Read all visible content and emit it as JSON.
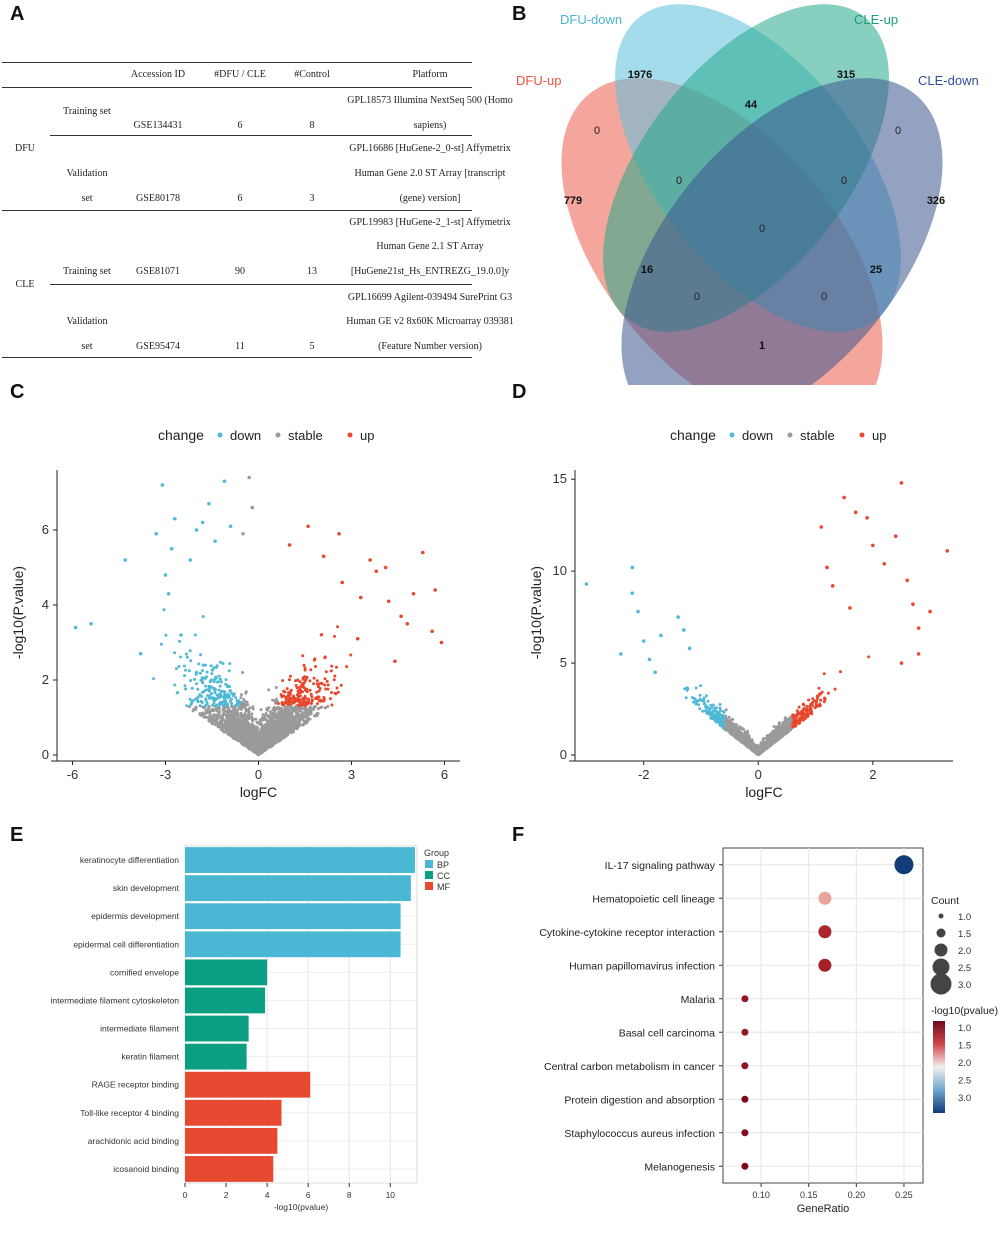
{
  "panels": {
    "a": "A",
    "b": "B",
    "c": "C",
    "d": "D",
    "e": "E",
    "f": "F"
  },
  "table": {
    "headers": [
      "Accession ID",
      "#DFU / CLE",
      "#Control",
      "Platform"
    ],
    "groups": [
      "DFU",
      "CLE"
    ],
    "rows": [
      {
        "set1": "Training set",
        "set2": "",
        "accession": "GSE134431",
        "cases": "6",
        "control": "8",
        "platform": [
          "GPL18573 Illumina NextSeq 500 (Homo",
          "sapiens)"
        ]
      },
      {
        "set1": "Validation",
        "set2": "set",
        "accession": "GSE80178",
        "cases": "6",
        "control": "3",
        "platform": [
          "GPL16686 [HuGene-2_0-st] Affymetrix",
          "Human Gene 2.0 ST Array [transcript",
          "(gene) version]"
        ]
      },
      {
        "set1": "Training set",
        "set2": "",
        "accession": "GSE81071",
        "cases": "90",
        "control": "13",
        "platform": [
          "GPL19983 [HuGene-2_1-st] Affymetrix",
          "Human Gene 2.1 ST Array",
          "[HuGene21st_Hs_ENTREZG_19.0.0]y"
        ]
      },
      {
        "set1": "Validation",
        "set2": "set",
        "accession": "GSE95474",
        "cases": "11",
        "control": "5",
        "platform": [
          "GPL16699 Agilent-039494 SurePrint G3",
          "Human GE v2 8x60K Microarray 039381",
          "(Feature Number version)"
        ]
      }
    ]
  },
  "chart_data": [
    {
      "type": "venn",
      "sets": [
        {
          "name": "DFU-up",
          "color": "#ee6a5a"
        },
        {
          "name": "DFU-down",
          "color": "#5bc0dc"
        },
        {
          "name": "CLE-up",
          "color": "#25a98b"
        },
        {
          "name": "CLE-down",
          "color": "#3d5590"
        }
      ],
      "regions": [
        {
          "sets": "DFU-down only",
          "value": "1976"
        },
        {
          "sets": "CLE-up only",
          "value": "315"
        },
        {
          "sets": "DFU-down & CLE-up",
          "value": "44"
        },
        {
          "sets": "DFU-up only",
          "value": "779"
        },
        {
          "sets": "CLE-down only",
          "value": "326"
        },
        {
          "sets": "DFU-up & DFU-down",
          "value": "0"
        },
        {
          "sets": "CLE-up & CLE-down",
          "value": "0"
        },
        {
          "sets": "DFU-up & DFU-down & CLE-up",
          "value": "0"
        },
        {
          "sets": "DFU-down & CLE-up & CLE-down",
          "value": "0"
        },
        {
          "sets": "all four",
          "value": "0"
        },
        {
          "sets": "DFU-up & CLE-up",
          "value": "16"
        },
        {
          "sets": "DFU-down & CLE-down",
          "value": "25"
        },
        {
          "sets": "DFU-up & CLE-up & CLE-down",
          "value": "0"
        },
        {
          "sets": "DFU-up & DFU-down & CLE-down",
          "value": "0"
        },
        {
          "sets": "DFU-up & CLE-down",
          "value": "1"
        }
      ]
    },
    {
      "type": "scatter",
      "title": "",
      "legend_title": "change",
      "legend": [
        {
          "label": "down",
          "color": "#4fb9d6"
        },
        {
          "label": "stable",
          "color": "#9a9a9a"
        },
        {
          "label": "up",
          "color": "#e8472d"
        }
      ],
      "xlabel": "logFC",
      "ylabel": "-log10(P.value)",
      "xlim": [
        -6.5,
        6.5
      ],
      "ylim": [
        0,
        7.6
      ],
      "xticks": [
        -6,
        -3,
        0,
        3,
        6
      ],
      "yticks": [
        0,
        2,
        4,
        6
      ],
      "outliers": {
        "down": [
          [
            -5.9,
            3.4
          ],
          [
            -5.4,
            3.5
          ],
          [
            -4.3,
            5.2
          ],
          [
            -3.8,
            2.7
          ],
          [
            -3.3,
            5.9
          ],
          [
            -3.1,
            7.2
          ],
          [
            -2.9,
            4.3
          ],
          [
            -2.8,
            5.5
          ],
          [
            -2.7,
            6.3
          ],
          [
            -2.2,
            5.2
          ],
          [
            -2.0,
            6.0
          ],
          [
            -1.6,
            6.7
          ],
          [
            -1.4,
            5.7
          ],
          [
            -1.1,
            7.3
          ],
          [
            -0.9,
            6.1
          ],
          [
            -2.5,
            3.2
          ],
          [
            -3.0,
            4.8
          ],
          [
            -2.0,
            2.2
          ],
          [
            -1.8,
            6.2
          ]
        ],
        "stable": [
          [
            -0.3,
            7.4
          ],
          [
            -0.2,
            6.6
          ],
          [
            -0.5,
            5.9
          ]
        ],
        "up": [
          [
            1.0,
            5.6
          ],
          [
            1.6,
            6.1
          ],
          [
            2.1,
            5.3
          ],
          [
            2.6,
            5.9
          ],
          [
            3.3,
            4.2
          ],
          [
            3.6,
            5.2
          ],
          [
            3.8,
            4.9
          ],
          [
            4.1,
            5.0
          ],
          [
            4.2,
            4.1
          ],
          [
            4.6,
            3.7
          ],
          [
            4.8,
            3.5
          ],
          [
            5.0,
            4.3
          ],
          [
            5.3,
            5.4
          ],
          [
            5.6,
            3.3
          ],
          [
            5.7,
            4.4
          ],
          [
            5.9,
            3.0
          ],
          [
            4.4,
            2.5
          ],
          [
            3.2,
            3.1
          ],
          [
            2.7,
            4.6
          ]
        ]
      }
    },
    {
      "type": "scatter",
      "title": "",
      "legend_title": "change",
      "legend": [
        {
          "label": "down",
          "color": "#4fb9d6"
        },
        {
          "label": "stable",
          "color": "#9a9a9a"
        },
        {
          "label": "up",
          "color": "#e8472d"
        }
      ],
      "xlabel": "logFC",
      "ylabel": "-log10(P.value)",
      "xlim": [
        -3.2,
        3.4
      ],
      "ylim": [
        0,
        15.5
      ],
      "xticks": [
        -2,
        0,
        2
      ],
      "yticks": [
        0,
        5,
        10,
        15
      ],
      "outliers": {
        "down": [
          [
            -3.0,
            9.3
          ],
          [
            -2.2,
            10.2
          ],
          [
            -2.2,
            8.8
          ],
          [
            -2.1,
            7.8
          ],
          [
            -2.0,
            6.2
          ],
          [
            -1.9,
            5.2
          ],
          [
            -1.7,
            6.5
          ],
          [
            -1.4,
            7.5
          ],
          [
            -1.3,
            6.8
          ],
          [
            -2.4,
            5.5
          ],
          [
            -1.8,
            4.5
          ],
          [
            -1.2,
            5.8
          ]
        ],
        "up": [
          [
            1.1,
            12.4
          ],
          [
            1.2,
            10.2
          ],
          [
            1.5,
            14.0
          ],
          [
            1.9,
            12.9
          ],
          [
            2.0,
            11.4
          ],
          [
            2.2,
            10.4
          ],
          [
            2.4,
            11.9
          ],
          [
            2.5,
            14.8
          ],
          [
            2.6,
            9.5
          ],
          [
            2.7,
            8.2
          ],
          [
            2.8,
            6.9
          ],
          [
            3.3,
            11.1
          ],
          [
            3.0,
            7.8
          ],
          [
            2.5,
            5.0
          ],
          [
            2.8,
            5.5
          ],
          [
            1.7,
            13.2
          ],
          [
            1.3,
            9.2
          ],
          [
            1.6,
            8.0
          ]
        ]
      }
    },
    {
      "type": "bar",
      "orientation": "horizontal",
      "xlabel": "-log10(pvalue)",
      "xlim": [
        0,
        11.3
      ],
      "xticks": [
        0,
        2,
        4,
        6,
        8,
        10
      ],
      "legend_title": "Group",
      "groups": [
        {
          "name": "BP",
          "color": "#4ab7d5"
        },
        {
          "name": "CC",
          "color": "#0b9e83"
        },
        {
          "name": "MF",
          "color": "#e6492f"
        }
      ],
      "categories": [
        "keratinocyte differentiation",
        "skin development",
        "epidermis development",
        "epidermal cell differentiation",
        "cornified envelope",
        "intermediate filament cytoskeleton",
        "intermediate filament",
        "keratin filament",
        "RAGE receptor binding",
        "Toll-like receptor 4 binding",
        "arachidonic acid binding",
        "icosanoid binding"
      ],
      "category_groups": [
        "BP",
        "BP",
        "BP",
        "BP",
        "CC",
        "CC",
        "CC",
        "CC",
        "MF",
        "MF",
        "MF",
        "MF"
      ],
      "values": [
        11.2,
        11.0,
        10.5,
        10.5,
        4.0,
        3.9,
        3.1,
        3.0,
        6.1,
        4.7,
        4.5,
        4.3
      ]
    },
    {
      "type": "scatter",
      "subtype": "dotplot",
      "xlabel": "GeneRatio",
      "xlim": [
        0.06,
        0.27
      ],
      "xticks": [
        0.1,
        0.15,
        0.2,
        0.25
      ],
      "xtick_labels": [
        "0.10",
        "0.15",
        "0.20",
        "0.25"
      ],
      "categories": [
        "IL-17 signaling pathway",
        "Hematopoietic cell lineage",
        "Cytokine-cytokine receptor interaction",
        "Human papillomavirus infection",
        "Malaria",
        "Basal cell carcinoma",
        "Central carbon metabolism in cancer",
        "Protein digestion and absorption",
        "Staphylococcus aureus infection",
        "Melanogenesis"
      ],
      "x": [
        0.25,
        0.167,
        0.167,
        0.167,
        0.083,
        0.083,
        0.083,
        0.083,
        0.083,
        0.083
      ],
      "count": [
        3,
        2,
        2,
        2,
        1,
        1,
        1,
        1,
        1,
        1
      ],
      "pvalue_log": [
        3.2,
        1.8,
        1.3,
        1.25,
        1.15,
        1.15,
        1.12,
        1.0,
        1.05,
        1.0
      ],
      "size_legend_title": "Count",
      "size_legend": [
        "1.0",
        "1.5",
        "2.0",
        "2.5",
        "3.0"
      ],
      "color_legend_title": "-log10(pvalue)",
      "color_legend": [
        "1.0",
        "1.5",
        "2.0",
        "2.5",
        "3.0"
      ]
    }
  ]
}
